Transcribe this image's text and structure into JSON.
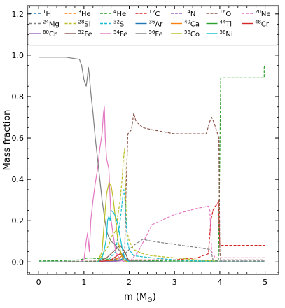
{
  "chart_data": {
    "type": "line",
    "xlabel": "m (M",
    "xlabel_sub": "⊙",
    "xlabel_close": ")",
    "ylabel": "Mass fraction",
    "xlim": [
      -0.25,
      5.3
    ],
    "ylim": [
      -0.06,
      1.24
    ],
    "xticks": [
      0,
      1,
      2,
      3,
      4,
      5
    ],
    "yticks": [
      0.0,
      0.2,
      0.4,
      0.6,
      0.8,
      1.0,
      1.2
    ],
    "ytick_labels": [
      "0.0",
      "0.2",
      "0.4",
      "0.6",
      "0.8",
      "1.0",
      "1.2"
    ],
    "legend_placement": "top",
    "legend_columns": 7,
    "series": [
      {
        "name": "1H",
        "mass": "1",
        "sym": "H",
        "color": "#1f77b4",
        "dash": true,
        "x": [
          0,
          1.0,
          1.5,
          2.0,
          3.0,
          4.0,
          5.0
        ],
        "y": [
          0,
          0,
          0,
          0,
          0,
          0,
          0
        ]
      },
      {
        "name": "3He",
        "mass": "3",
        "sym": "He",
        "color": "#ff7f0e",
        "dash": true,
        "x": [
          0,
          1.0,
          2.0,
          3.0,
          4.0,
          5.0
        ],
        "y": [
          0,
          0,
          0,
          0,
          0,
          0
        ]
      },
      {
        "name": "4He",
        "mass": "4",
        "sym": "He",
        "color": "#2ca02c",
        "dash": true,
        "x": [
          0,
          0.5,
          0.9,
          1.0,
          1.1,
          1.2,
          1.4,
          1.6,
          1.8,
          2.0,
          2.5,
          3.0,
          3.5,
          3.8,
          3.97,
          4.0,
          4.02,
          4.5,
          4.98,
          4.98,
          5.0
        ],
        "y": [
          0.005,
          0.006,
          0.01,
          0.015,
          0.02,
          0.018,
          0.015,
          0.012,
          0.01,
          0.008,
          0.006,
          0.005,
          0.005,
          0.005,
          0.005,
          0.5,
          0.89,
          0.89,
          0.89,
          0.94,
          0.96
        ]
      },
      {
        "name": "12C",
        "mass": "12",
        "sym": "C",
        "color": "#d62728",
        "dash": true,
        "x": [
          0,
          1.2,
          1.5,
          1.9,
          2.1,
          2.5,
          3.0,
          3.5,
          3.75,
          3.8,
          3.85,
          3.9,
          3.95,
          3.97,
          4.0,
          4.02,
          4.5,
          5.0
        ],
        "y": [
          0,
          0,
          0.005,
          0.01,
          0.01,
          0.01,
          0.01,
          0.02,
          0.04,
          0.2,
          0.25,
          0.27,
          0.28,
          0.3,
          0.08,
          0.08,
          0.08,
          0.08
        ]
      },
      {
        "name": "14N",
        "mass": "14",
        "sym": "N",
        "color": "#9467bd",
        "dash": true,
        "x": [
          0,
          1.0,
          2.0,
          3.0,
          4.0,
          4.02,
          5.0
        ],
        "y": [
          0,
          0,
          0,
          0,
          0.002,
          0.004,
          0.004
        ]
      },
      {
        "name": "16O",
        "mass": "16",
        "sym": "O",
        "color": "#8c564b",
        "dash": true,
        "x": [
          0,
          1.5,
          1.8,
          1.9,
          1.93,
          1.97,
          2.05,
          2.1,
          2.15,
          2.3,
          2.5,
          3.0,
          3.5,
          3.7,
          3.78,
          3.82,
          3.88,
          3.95,
          3.98,
          3.99,
          4.0,
          4.02,
          4.5,
          5.0
        ],
        "y": [
          0,
          0.005,
          0.02,
          0.05,
          0.35,
          0.62,
          0.64,
          0.72,
          0.68,
          0.65,
          0.64,
          0.62,
          0.62,
          0.62,
          0.68,
          0.7,
          0.67,
          0.62,
          0.6,
          0.3,
          0.05,
          0.01,
          0.01,
          0.01
        ]
      },
      {
        "name": "20Ne",
        "mass": "20",
        "sym": "Ne",
        "color": "#e377c2",
        "dash": true,
        "x": [
          0,
          2.0,
          2.2,
          2.5,
          3.0,
          3.5,
          3.75,
          3.78,
          3.82,
          3.9,
          4.0,
          4.5,
          5.0
        ],
        "y": [
          0,
          0,
          0.05,
          0.18,
          0.23,
          0.26,
          0.27,
          0.25,
          0.05,
          0.02,
          0.02,
          0.02,
          0.02
        ]
      },
      {
        "name": "24Mg",
        "mass": "24",
        "sym": "Mg",
        "color": "#7f7f7f",
        "dash": true,
        "x": [
          0,
          1.5,
          1.8,
          1.95,
          2.1,
          2.3,
          2.5,
          3.0,
          3.5,
          3.8,
          3.85,
          4.0,
          5.0
        ],
        "y": [
          0,
          0,
          0.02,
          0.05,
          0.08,
          0.11,
          0.1,
          0.085,
          0.07,
          0.06,
          0.01,
          0.005,
          0.005
        ]
      },
      {
        "name": "28Si",
        "mass": "28",
        "sym": "Si",
        "color": "#bcbd22",
        "dash": true,
        "x": [
          0,
          1.3,
          1.55,
          1.6,
          1.7,
          1.8,
          1.85,
          1.87,
          1.9,
          1.92,
          1.95,
          2.0,
          2.1,
          2.3,
          2.5,
          3.0,
          3.5,
          3.8,
          4.0,
          5.0
        ],
        "y": [
          0,
          0,
          0.08,
          0.12,
          0.15,
          0.3,
          0.42,
          0.5,
          0.55,
          0.3,
          0.15,
          0.1,
          0.06,
          0.04,
          0.03,
          0.02,
          0.01,
          0.005,
          0,
          0
        ]
      },
      {
        "name": "32S",
        "mass": "32",
        "sym": "S",
        "color": "#17becf",
        "dash": true,
        "x": [
          0,
          1.5,
          1.7,
          1.8,
          1.85,
          1.88,
          1.9,
          1.93,
          1.96,
          2.0,
          2.1,
          2.5,
          3.0,
          3.5,
          4.0,
          5.0
        ],
        "y": [
          0,
          0,
          0.05,
          0.2,
          0.3,
          0.35,
          0.32,
          0.2,
          0.1,
          0.06,
          0.03,
          0.02,
          0.01,
          0.005,
          0,
          0
        ]
      },
      {
        "name": "36Ar",
        "mass": "36",
        "sym": "Ar",
        "color": "#1f77b4",
        "dash": false,
        "x": [
          0,
          1.5,
          1.8,
          1.9,
          2.0,
          3.0,
          5.0
        ],
        "y": [
          0,
          0,
          0.01,
          0.02,
          0.005,
          0,
          0
        ]
      },
      {
        "name": "40Ca",
        "mass": "40",
        "sym": "Ca",
        "color": "#ff7f0e",
        "dash": false,
        "x": [
          0,
          1.4,
          1.7,
          1.85,
          2.0,
          3.0,
          5.0
        ],
        "y": [
          0,
          0,
          0.01,
          0.03,
          0.005,
          0,
          0
        ]
      },
      {
        "name": "44Ti",
        "mass": "44",
        "sym": "Ti",
        "color": "#2ca02c",
        "dash": false,
        "x": [
          0,
          1.4,
          1.7,
          1.9,
          2.0,
          5.0
        ],
        "y": [
          0,
          0,
          0.005,
          0.01,
          0,
          0
        ]
      },
      {
        "name": "48Cr",
        "mass": "48",
        "sym": "Cr",
        "color": "#d62728",
        "dash": false,
        "x": [
          0,
          1.3,
          1.6,
          1.8,
          1.9,
          2.0,
          5.0
        ],
        "y": [
          0,
          0,
          0.01,
          0.04,
          0.02,
          0,
          0
        ]
      },
      {
        "name": "60Cr",
        "mass": "60",
        "sym": "Cr",
        "color": "#9467bd",
        "dash": false,
        "x": [
          0,
          1.4,
          1.75,
          1.9,
          2.0,
          5.0
        ],
        "y": [
          0,
          0,
          0.005,
          0.01,
          0,
          0
        ]
      },
      {
        "name": "52Fe",
        "mass": "52",
        "sym": "Fe",
        "color": "#8c564b",
        "dash": false,
        "x": [
          0,
          1.3,
          1.5,
          1.7,
          1.8,
          1.9,
          2.0,
          5.0
        ],
        "y": [
          0,
          0,
          0.02,
          0.06,
          0.08,
          0.05,
          0,
          0
        ]
      },
      {
        "name": "54Fe",
        "mass": "54",
        "sym": "Fe",
        "color": "#e377c2",
        "dash": false,
        "x": [
          0,
          0.9,
          1.0,
          1.05,
          1.08,
          1.12,
          1.15,
          1.2,
          1.25,
          1.3,
          1.35,
          1.4,
          1.43,
          1.45,
          1.47,
          1.5,
          1.55,
          1.6,
          1.7,
          1.8,
          1.9,
          2.0,
          3.0,
          5.0
        ],
        "y": [
          0,
          0,
          0.01,
          0.1,
          0.14,
          0.05,
          0.2,
          0.3,
          0.38,
          0.45,
          0.55,
          0.62,
          0.72,
          0.75,
          0.6,
          0.5,
          0.45,
          0.2,
          0.05,
          0.01,
          0,
          0,
          0,
          0
        ]
      },
      {
        "name": "56Fe",
        "mass": "56",
        "sym": "Fe",
        "color": "#7f7f7f",
        "dash": false,
        "x": [
          0,
          0.3,
          0.6,
          0.9,
          0.95,
          1.0,
          1.05,
          1.08,
          1.1,
          1.12,
          1.15,
          1.2,
          1.25,
          1.3,
          1.35,
          1.4,
          1.45,
          1.5,
          1.55,
          1.6,
          1.7,
          1.8,
          1.9,
          2.0,
          3.0,
          5.0
        ],
        "y": [
          0.99,
          0.99,
          0.99,
          0.98,
          0.95,
          0.88,
          0.85,
          0.9,
          0.94,
          0.9,
          0.82,
          0.72,
          0.6,
          0.5,
          0.4,
          0.3,
          0.22,
          0.15,
          0.12,
          0.1,
          0.08,
          0.05,
          0.02,
          0.005,
          0,
          0
        ]
      },
      {
        "name": "56Co",
        "mass": "56",
        "sym": "Co",
        "color": "#bcbd22",
        "dash": false,
        "x": [
          0,
          1.3,
          1.4,
          1.45,
          1.5,
          1.55,
          1.6,
          1.65,
          1.7,
          1.75,
          1.8,
          1.85,
          1.9,
          2.0,
          5.0
        ],
        "y": [
          0,
          0,
          0.05,
          0.2,
          0.33,
          0.38,
          0.37,
          0.3,
          0.2,
          0.1,
          0.06,
          0.02,
          0.005,
          0,
          0
        ]
      },
      {
        "name": "56Ni",
        "mass": "56",
        "sym": "Ni",
        "color": "#17becf",
        "dash": false,
        "x": [
          0,
          1.3,
          1.4,
          1.45,
          1.5,
          1.52,
          1.55,
          1.58,
          1.6,
          1.65,
          1.7,
          1.75,
          1.8,
          1.85,
          1.9,
          2.0,
          5.0
        ],
        "y": [
          0,
          0,
          0.02,
          0.06,
          0.12,
          0.2,
          0.22,
          0.2,
          0.25,
          0.24,
          0.22,
          0.18,
          0.12,
          0.06,
          0.02,
          0,
          0
        ]
      }
    ]
  }
}
